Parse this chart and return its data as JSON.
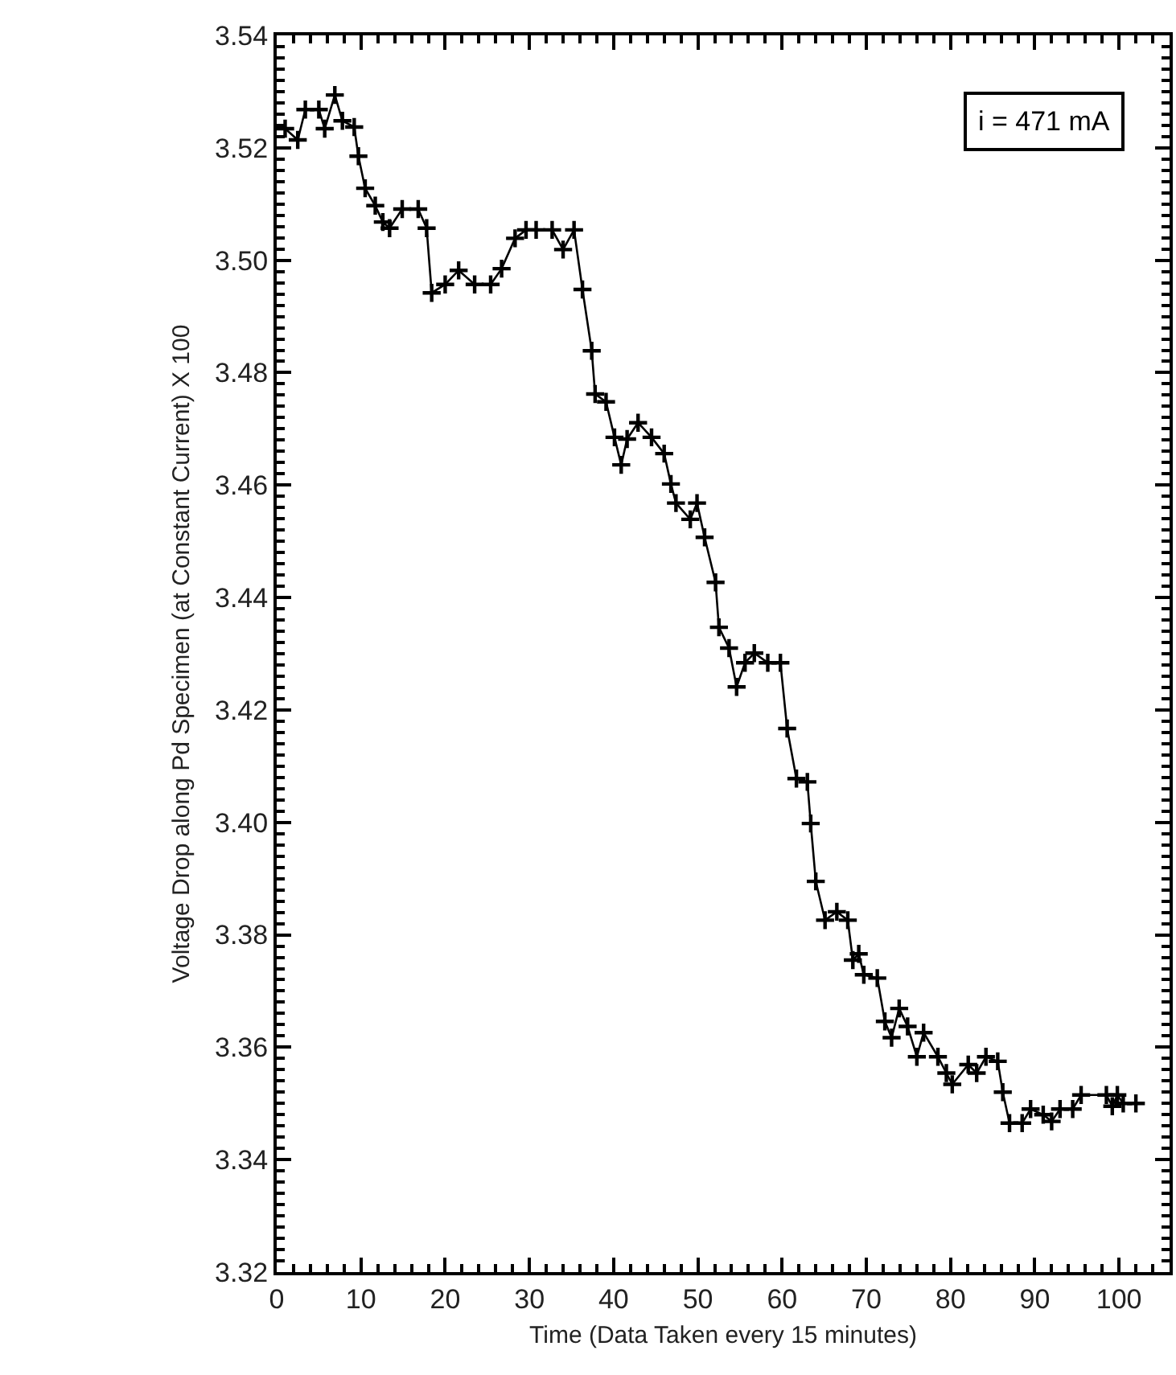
{
  "chart_data": {
    "type": "line",
    "xlabel": "Time (Data Taken every 15 minutes)",
    "ylabel": "Voltage Drop along Pd Specimen (at Constant Current) X 100",
    "annotations": [
      "i = 471 mA"
    ],
    "x": [
      1.0,
      2.5,
      3.4,
      5.0,
      5.7,
      6.9,
      7.8,
      9.2,
      9.7,
      10.5,
      11.7,
      12.6,
      13.4,
      14.9,
      16.8,
      17.8,
      18.4,
      20.0,
      21.6,
      23.5,
      25.4,
      26.7,
      28.3,
      29.6,
      30.8,
      32.7,
      34.0,
      35.3,
      36.3,
      37.4,
      37.8,
      39.1,
      40.1,
      40.9,
      41.6,
      42.9,
      44.5,
      46.0,
      46.8,
      47.4,
      49.1,
      49.9,
      50.8,
      52.1,
      52.5,
      53.7,
      54.6,
      55.6,
      56.7,
      58.3,
      59.8,
      60.6,
      61.7,
      63.0,
      63.4,
      64.0,
      65.1,
      66.5,
      67.8,
      68.4,
      69.1,
      69.7,
      71.3,
      72.2,
      73.0,
      73.9,
      74.9,
      76.0,
      76.8,
      78.5,
      79.5,
      80.2,
      82.1,
      83.1,
      84.2,
      85.6,
      86.2,
      87.0,
      88.5,
      89.5,
      91.0,
      92.0,
      93.0,
      94.5,
      95.5,
      98.5,
      99.2,
      99.8,
      100.5,
      102.0
    ],
    "series": [
      {
        "color": "#000000",
        "values": [
          3.5234,
          3.5214,
          3.5268,
          3.5268,
          3.5234,
          3.5294,
          3.5248,
          3.5237,
          3.5185,
          3.5128,
          3.5097,
          3.5068,
          3.5057,
          3.5091,
          3.5091,
          3.5057,
          3.4942,
          3.4957,
          3.4982,
          3.4957,
          3.4957,
          3.4985,
          3.5039,
          3.5054,
          3.5054,
          3.5054,
          3.5019,
          3.5054,
          3.4948,
          3.4839,
          3.4762,
          3.4748,
          3.4685,
          3.4636,
          3.4682,
          3.4711,
          3.4685,
          3.4656,
          3.4602,
          3.4568,
          3.4539,
          3.4568,
          3.4507,
          3.4427,
          3.4347,
          3.431,
          3.4241,
          3.4284,
          3.4301,
          3.4284,
          3.4284,
          3.4167,
          3.4078,
          3.4072,
          3.3998,
          3.3895,
          3.3826,
          3.3841,
          3.3826,
          3.3755,
          3.3766,
          3.3729,
          3.3723,
          3.3646,
          3.3617,
          3.3669,
          3.3637,
          3.3583,
          3.3626,
          3.3583,
          3.3554,
          3.3534,
          3.3569,
          3.3554,
          3.3583,
          3.3575,
          3.352,
          3.3465,
          3.3465,
          3.349,
          3.348,
          3.3468,
          3.349,
          3.349,
          3.3515,
          3.3515,
          3.3495,
          3.3515,
          3.35,
          3.35
        ]
      }
    ],
    "xlim": [
      0,
      106
    ],
    "xticks": [
      0,
      10,
      20,
      30,
      40,
      50,
      60,
      70,
      80,
      90,
      100
    ],
    "ylim": [
      3.32,
      3.54
    ],
    "yticks": [
      {
        "value": 3.32,
        "label": "3.32"
      },
      {
        "value": 3.34,
        "label": "3.34"
      },
      {
        "value": 3.36,
        "label": "3.36"
      },
      {
        "value": 3.38,
        "label": "3.38"
      },
      {
        "value": 3.4,
        "label": "3.40"
      },
      {
        "value": 3.42,
        "label": "3.42"
      },
      {
        "value": 3.44,
        "label": "3.44"
      },
      {
        "value": 3.46,
        "label": "3.46"
      },
      {
        "value": 3.48,
        "label": "3.48"
      },
      {
        "value": 3.5,
        "label": "3.50"
      },
      {
        "value": 3.52,
        "label": "3.52"
      },
      {
        "value": 3.54,
        "label": "3.54"
      }
    ],
    "marker": "cross",
    "line_style": "solid"
  }
}
